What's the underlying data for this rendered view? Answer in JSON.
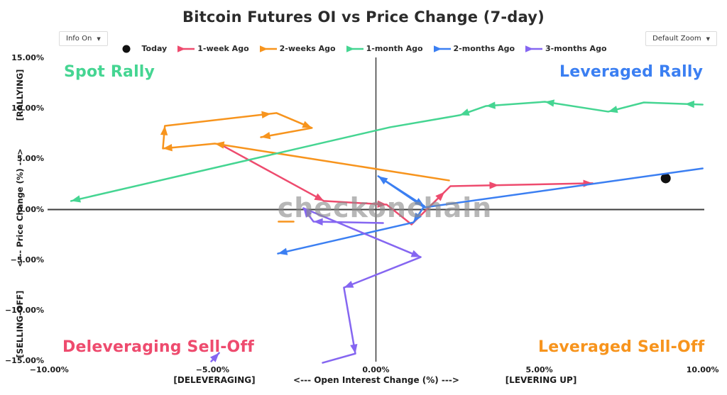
{
  "title": "Bitcoin Futures OI vs Price Change (7-day)",
  "controls": {
    "info_dropdown": "Info On",
    "zoom_dropdown": "Default Zoom"
  },
  "watermark": "checkonchain",
  "quadrant_labels": {
    "top_left": {
      "text": "Spot Rally",
      "color": "#45d592"
    },
    "top_right": {
      "text": "Leveraged Rally",
      "color": "#3b7ff2"
    },
    "bottom_left": {
      "text": "Deleveraging Sell-Off",
      "color": "#ee4b6e"
    },
    "bottom_right": {
      "text": "Leveraged Sell-Off",
      "color": "#f7941d"
    }
  },
  "chart_data": {
    "type": "scatter",
    "subtype": "trajectory-arrows",
    "grid": false,
    "legend_position": "top-center",
    "x_axis": {
      "label_parts": [
        "[DELEVERAGING]",
        "<---   Open Interest Change (%)   --->",
        "[LEVERING UP]"
      ],
      "ticks": [
        -10,
        -5,
        0,
        5,
        10
      ],
      "tick_labels": [
        "−10.00%",
        "−5.00%",
        "0.00%",
        "5.00%",
        "10.00%"
      ],
      "range": [
        -10.05,
        10.05
      ]
    },
    "y_axis": {
      "label_parts": [
        "[SELLING-OFF]",
        "<---   Price Change (%)   --->",
        "[RALLYING]"
      ],
      "ticks": [
        15,
        10,
        5,
        0,
        -5,
        -10,
        -15
      ],
      "tick_labels": [
        "15.00%",
        "10.00%",
        "5.00%",
        "0.00%",
        "−5.00%",
        "−10.00%",
        "−15.00%"
      ],
      "range": [
        -15.1,
        15.1
      ]
    },
    "series": [
      {
        "name": "Today",
        "color": "#111111",
        "marker": "circle",
        "point": [
          8.87,
          3.1
        ]
      },
      {
        "name": "1-week Ago",
        "color": "#ee4b6e",
        "paths": [
          {
            "points": [
              [
                -4.77,
                6.48
              ],
              [
                -1.59,
                0.85
              ],
              [
                0.33,
                0.49
              ],
              [
                1.09,
                -1.48
              ],
              [
                2.28,
                2.32
              ],
              [
                6.63,
                2.61
              ]
            ],
            "arrows": [
              [
                0,
                1
              ],
              [
                1,
                1
              ],
              [
                3,
                0.85
              ],
              [
                4,
                0.34
              ],
              [
                4,
                1
              ]
            ]
          }
        ]
      },
      {
        "name": "2-weeks Ago",
        "color": "#f7941d",
        "paths": [
          {
            "points": [
              [
                2.24,
                2.89
              ],
              [
                -4.93,
                6.55
              ],
              [
                -6.52,
                6.06
              ],
              [
                -6.46,
                8.31
              ],
              [
                -3.04,
                9.58
              ],
              [
                -1.96,
                8.1
              ],
              [
                -3.52,
                7.18
              ]
            ],
            "arrows": [
              [
                0,
                1
              ],
              [
                1,
                1
              ],
              [
                2,
                1
              ],
              [
                3,
                0.95
              ],
              [
                4,
                1
              ],
              [
                5,
                1
              ]
            ]
          },
          {
            "points": [
              [
                -2.98,
                -1.2
              ],
              [
                -2.52,
                -1.2
              ]
            ],
            "arrows": []
          }
        ]
      },
      {
        "name": "1-month Ago",
        "color": "#45d592",
        "paths": [
          {
            "points": [
              [
                10.0,
                10.42
              ],
              [
                8.2,
                10.63
              ],
              [
                7.11,
                9.72
              ],
              [
                5.17,
                10.7
              ],
              [
                3.37,
                10.28
              ],
              [
                2.57,
                9.37
              ],
              [
                0.43,
                8.17
              ],
              [
                -9.33,
                0.85
              ]
            ],
            "arrows": [
              [
                0,
                0.3
              ],
              [
                1,
                1
              ],
              [
                2,
                1
              ],
              [
                3,
                1
              ],
              [
                4,
                1
              ],
              [
                6,
                1
              ]
            ]
          }
        ]
      },
      {
        "name": "2-months Ago",
        "color": "#3b7ff2",
        "paths": [
          {
            "points": [
              [
                10.0,
                4.08
              ],
              [
                1.48,
                0.21
              ],
              [
                0.07,
                3.31
              ],
              [
                1.48,
                0.35
              ],
              [
                1.15,
                -1.27
              ],
              [
                -3.0,
                -4.37
              ]
            ],
            "arrows": [
              [
                1,
                1
              ],
              [
                2,
                1
              ],
              [
                3,
                1
              ],
              [
                4,
                1
              ]
            ]
          }
        ]
      },
      {
        "name": "3-months Ago",
        "color": "#8566f1",
        "paths": [
          {
            "points": [
              [
                0.22,
                -1.34
              ],
              [
                -1.91,
                -1.2
              ],
              [
                -2.22,
                0.14
              ],
              [
                1.37,
                -4.72
              ],
              [
                -0.98,
                -7.75
              ],
              [
                -0.63,
                -14.3
              ],
              [
                -1.63,
                -15.21
              ]
            ],
            "arrows": [
              [
                0,
                1
              ],
              [
                1,
                1
              ],
              [
                2,
                1
              ],
              [
                3,
                1
              ],
              [
                4,
                1
              ]
            ]
          },
          {
            "points": [
              [
                -5.04,
                -15.07
              ],
              [
                -4.8,
                -14.23
              ]
            ],
            "arrows": [
              [
                0,
                1
              ]
            ]
          }
        ]
      }
    ]
  }
}
